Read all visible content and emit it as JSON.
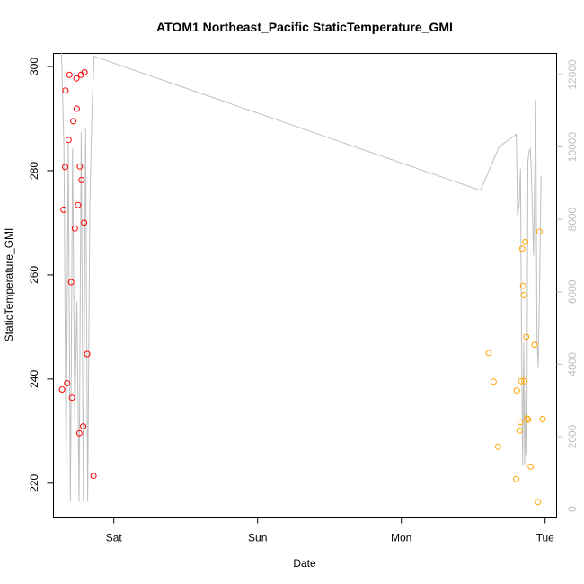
{
  "chart_data": {
    "type": "scatter",
    "title": "ATOM1 Northeast_Pacific StaticTemperature_GMI",
    "xlabel": "Date",
    "ylabel": "StaticTemperature_GMI",
    "x_ticks": [
      {
        "label": "Sat",
        "day": 1
      },
      {
        "label": "Sun",
        "day": 2
      },
      {
        "label": "Mon",
        "day": 3
      },
      {
        "label": "Tue",
        "day": 4
      }
    ],
    "xlim_days": [
      0.58,
      4.08
    ],
    "y_left": {
      "ticks": [
        220,
        240,
        260,
        280,
        300
      ],
      "ylim": [
        213.5,
        302.5
      ]
    },
    "y_right": {
      "ticks": [
        0,
        2000,
        4000,
        6000,
        8000,
        10000,
        12000
      ],
      "ylim": [
        -220,
        12580
      ],
      "color": "#bfbfbf"
    },
    "series": [
      {
        "color": "#ff0000",
        "marker": "open-circle",
        "points": [
          {
            "day": 0.64,
            "y": 238.0
          },
          {
            "day": 0.65,
            "y": 272.5
          },
          {
            "day": 0.661,
            "y": 280.7
          },
          {
            "day": 0.664,
            "y": 295.4
          },
          {
            "day": 0.675,
            "y": 239.2
          },
          {
            "day": 0.685,
            "y": 285.9
          },
          {
            "day": 0.691,
            "y": 298.4
          },
          {
            "day": 0.703,
            "y": 258.6
          },
          {
            "day": 0.709,
            "y": 236.4
          },
          {
            "day": 0.718,
            "y": 289.5
          },
          {
            "day": 0.729,
            "y": 268.9
          },
          {
            "day": 0.74,
            "y": 297.7
          },
          {
            "day": 0.742,
            "y": 291.9
          },
          {
            "day": 0.751,
            "y": 273.4
          },
          {
            "day": 0.76,
            "y": 229.6
          },
          {
            "day": 0.764,
            "y": 280.8
          },
          {
            "day": 0.772,
            "y": 298.4
          },
          {
            "day": 0.775,
            "y": 278.2
          },
          {
            "day": 0.787,
            "y": 230.9
          },
          {
            "day": 0.793,
            "y": 270.0
          },
          {
            "day": 0.796,
            "y": 298.9
          },
          {
            "day": 0.815,
            "y": 244.8
          },
          {
            "day": 0.859,
            "y": 221.4
          }
        ]
      },
      {
        "color": "#ffa500",
        "marker": "open-circle",
        "points": [
          {
            "day": 3.608,
            "y": 245.0
          },
          {
            "day": 3.642,
            "y": 239.5
          },
          {
            "day": 3.673,
            "y": 227.0
          },
          {
            "day": 3.8,
            "y": 220.8
          },
          {
            "day": 3.803,
            "y": 237.8
          },
          {
            "day": 3.822,
            "y": 230.1
          },
          {
            "day": 3.828,
            "y": 231.7
          },
          {
            "day": 3.834,
            "y": 239.6
          },
          {
            "day": 3.84,
            "y": 265.0
          },
          {
            "day": 3.847,
            "y": 257.9
          },
          {
            "day": 3.853,
            "y": 256.1
          },
          {
            "day": 3.856,
            "y": 239.6
          },
          {
            "day": 3.862,
            "y": 266.3
          },
          {
            "day": 3.869,
            "y": 248.1
          },
          {
            "day": 3.875,
            "y": 232.4
          },
          {
            "day": 3.881,
            "y": 232.2
          },
          {
            "day": 3.9,
            "y": 223.2
          },
          {
            "day": 3.926,
            "y": 246.6
          },
          {
            "day": 3.951,
            "y": 216.4
          },
          {
            "day": 3.961,
            "y": 268.3
          },
          {
            "day": 3.983,
            "y": 232.3
          }
        ]
      },
      {
        "color": "#bfbfbf",
        "marker": "line",
        "axis": "right",
        "points": [
          {
            "day": 0.636,
            "y": 12600
          },
          {
            "day": 0.653,
            "y": 9950
          },
          {
            "day": 0.668,
            "y": 1140
          },
          {
            "day": 0.683,
            "y": 10120
          },
          {
            "day": 0.698,
            "y": 210
          },
          {
            "day": 0.713,
            "y": 9950
          },
          {
            "day": 0.728,
            "y": 2500
          },
          {
            "day": 0.743,
            "y": 5720
          },
          {
            "day": 0.758,
            "y": 210
          },
          {
            "day": 0.773,
            "y": 10400
          },
          {
            "day": 0.788,
            "y": 210
          },
          {
            "day": 0.803,
            "y": 10500
          },
          {
            "day": 0.818,
            "y": 210
          },
          {
            "day": 0.833,
            "y": 8400
          },
          {
            "day": 0.848,
            "y": 11000
          },
          {
            "day": 0.863,
            "y": 12500
          },
          {
            "day": 3.55,
            "y": 8800
          },
          {
            "day": 3.68,
            "y": 10000
          },
          {
            "day": 3.8,
            "y": 10350
          },
          {
            "day": 3.808,
            "y": 8100
          },
          {
            "day": 3.82,
            "y": 8400
          },
          {
            "day": 3.829,
            "y": 9400
          },
          {
            "day": 3.836,
            "y": 4650
          },
          {
            "day": 3.844,
            "y": 1200
          },
          {
            "day": 3.851,
            "y": 4600
          },
          {
            "day": 3.858,
            "y": 1200
          },
          {
            "day": 3.866,
            "y": 3300
          },
          {
            "day": 3.873,
            "y": 1500
          },
          {
            "day": 3.88,
            "y": 9600
          },
          {
            "day": 3.89,
            "y": 9900
          },
          {
            "day": 3.897,
            "y": 9950
          },
          {
            "day": 3.904,
            "y": 9400
          },
          {
            "day": 3.912,
            "y": 8200
          },
          {
            "day": 3.92,
            "y": 7000
          },
          {
            "day": 3.935,
            "y": 11300
          },
          {
            "day": 3.943,
            "y": 4800
          },
          {
            "day": 3.952,
            "y": 3900
          },
          {
            "day": 3.962,
            "y": 6200
          },
          {
            "day": 3.972,
            "y": 9200
          }
        ]
      }
    ]
  }
}
